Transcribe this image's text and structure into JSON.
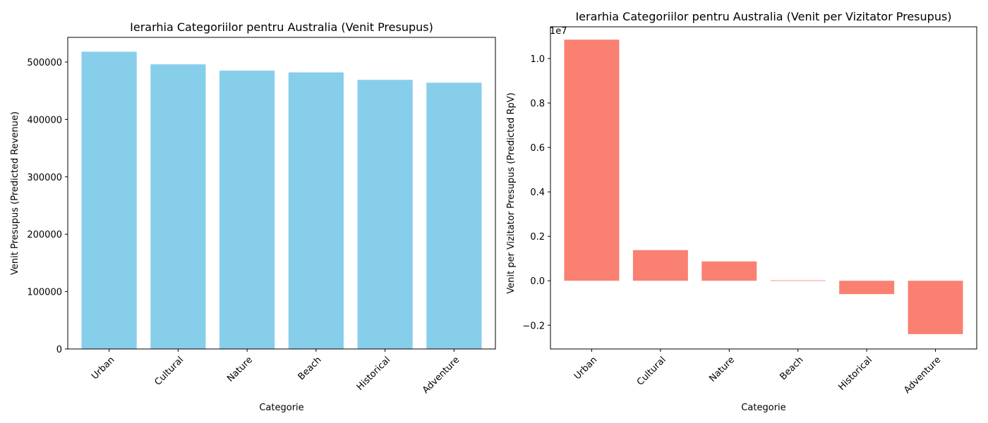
{
  "chart_data": [
    {
      "type": "bar",
      "title": "Ierarhia Categoriilor pentru Australia (Venit Presupus)",
      "xlabel": "Categorie",
      "ylabel": "Venit Presupus (Predicted Revenue)",
      "categories": [
        "Urban",
        "Cultural",
        "Nature",
        "Beach",
        "Historical",
        "Adventure"
      ],
      "values": [
        518000,
        496000,
        485000,
        482000,
        469000,
        464000
      ],
      "ylim": [
        0,
        543000
      ],
      "yticks": [
        0,
        100000,
        200000,
        300000,
        400000,
        500000
      ],
      "ytick_labels": [
        "0",
        "100000",
        "200000",
        "300000",
        "400000",
        "500000"
      ],
      "color": "#87ceeb",
      "grid": false
    },
    {
      "type": "bar",
      "title": "Ierarhia Categoriilor pentru Australia (Venit per Vizitator Presupus)",
      "xlabel": "Categorie",
      "ylabel": "Venit per Vizitator Presupus (Predicted RpV)",
      "categories": [
        "Urban",
        "Cultural",
        "Nature",
        "Beach",
        "Historical",
        "Adventure"
      ],
      "values": [
        10850000,
        1380000,
        870000,
        20000,
        -600000,
        -2400000
      ],
      "ylim": [
        -3070000,
        11430000
      ],
      "yticks": [
        -2000000,
        0,
        2000000,
        4000000,
        6000000,
        8000000,
        10000000
      ],
      "ytick_labels": [
        "−0.2",
        "0.0",
        "0.2",
        "0.4",
        "0.6",
        "0.8",
        "1.0"
      ],
      "offset_label": "1e7",
      "color": "#fa8072",
      "grid": false
    }
  ]
}
